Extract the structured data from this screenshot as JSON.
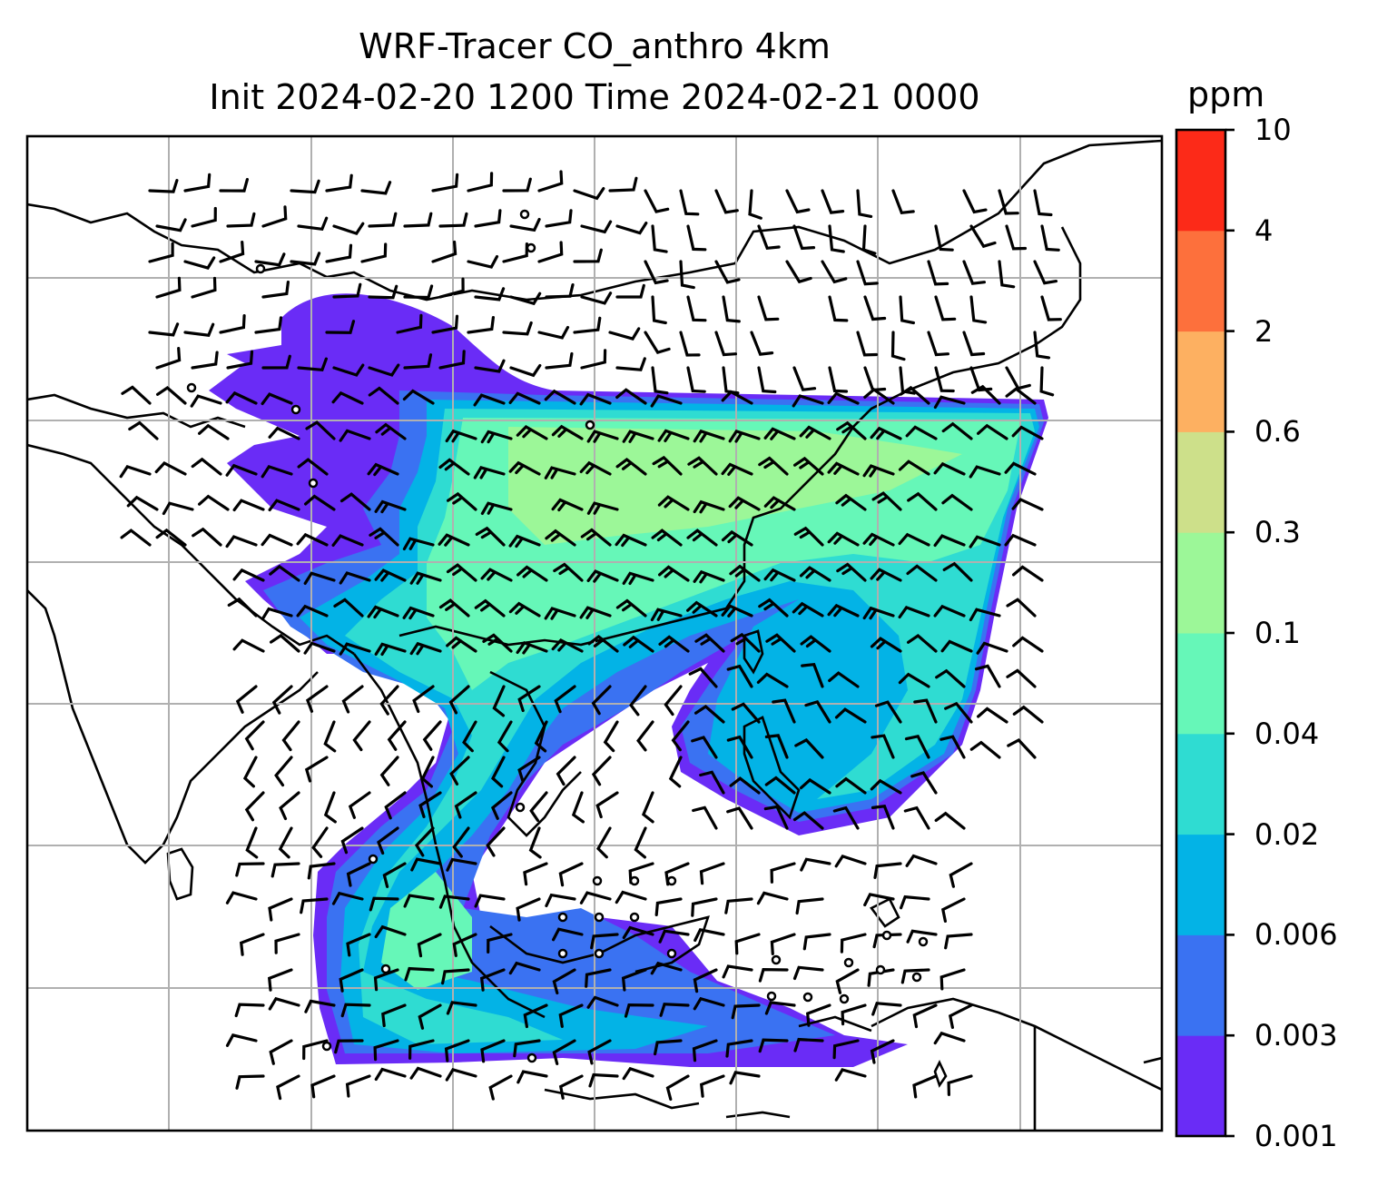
{
  "title": {
    "line1": "WRF-Tracer CO_anthro 4km",
    "line2": "Init 2024-02-20 1200 Time 2024-02-21 0000"
  },
  "colorbar": {
    "unit": "ppm",
    "levels": [
      "0.001",
      "0.003",
      "0.006",
      "0.02",
      "0.04",
      "0.1",
      "0.3",
      "0.6",
      "2",
      "4",
      "10"
    ],
    "colors": [
      "#6a2cf6",
      "#3a72f2",
      "#03b3e6",
      "#2fdcd2",
      "#66f7b8",
      "#9cf798",
      "#cde08a",
      "#fdb061",
      "#fd703c",
      "#fc2a18"
    ]
  },
  "map": {
    "gridlines": true,
    "grid_color": "#b0b0b0",
    "coastline_color": "#000000",
    "wind_barbs": "black",
    "calm_marker": "circle"
  }
}
